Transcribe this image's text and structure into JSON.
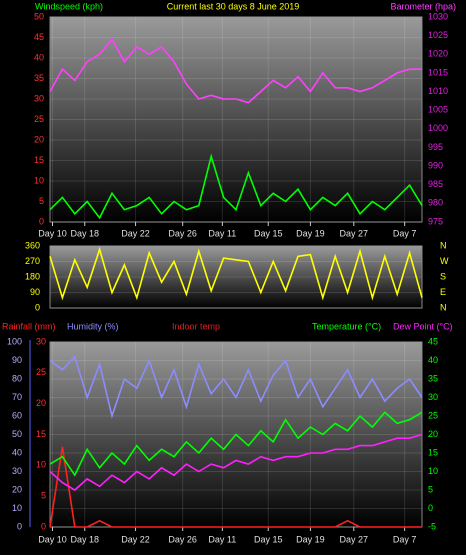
{
  "chart_data": [
    {
      "type": "line",
      "title": "Current last 30 days 8 June 2019",
      "x": [
        0,
        1,
        2,
        3,
        4,
        5,
        6,
        7,
        8,
        9,
        10,
        11,
        12,
        13,
        14,
        15,
        16,
        17,
        18,
        19,
        20,
        21,
        22,
        23,
        24,
        25,
        26,
        27,
        28,
        29,
        30
      ],
      "xlim": [
        0,
        30
      ],
      "xticks": [
        {
          "value": 0.2,
          "label": "Day 10"
        },
        {
          "value": 2.8,
          "label": "Day 18"
        },
        {
          "value": 6.9,
          "label": "Day 22"
        },
        {
          "value": 10.7,
          "label": "Day 26"
        },
        {
          "value": 13.9,
          "label": "Day 11"
        },
        {
          "value": 17.6,
          "label": "Day 15"
        },
        {
          "value": 21,
          "label": "Day 19"
        },
        {
          "value": 24.5,
          "label": "Day 27"
        },
        {
          "value": 28.6,
          "label": "Day 7"
        }
      ],
      "ylim": [
        0,
        50
      ],
      "yticks": [
        0,
        5,
        10,
        15,
        20,
        25,
        30,
        35,
        40,
        45,
        50
      ],
      "ycolor": "#ff3030",
      "y2lim": [
        975,
        1030
      ],
      "y2ticks": [
        975,
        980,
        985,
        990,
        995,
        1000,
        1005,
        1010,
        1015,
        1020,
        1025,
        1030
      ],
      "y2color": "#e020e0",
      "grid": true,
      "series": [
        {
          "name": "Windspeed (kph)",
          "color": "#00ff00",
          "values": [
            3,
            6,
            2,
            5,
            1,
            7,
            3,
            4,
            6,
            2,
            5,
            3,
            4,
            16,
            6,
            3,
            12,
            4,
            7,
            5,
            8,
            3,
            6,
            4,
            7,
            2,
            5,
            3,
            6,
            9,
            4
          ]
        },
        {
          "name": "Barometer (hpa)",
          "color": "#ff40ff",
          "axis": "y2",
          "values": [
            1010,
            1016,
            1013,
            1018,
            1020,
            1024,
            1018,
            1022,
            1020,
            1022,
            1018,
            1012,
            1008,
            1009,
            1008,
            1008,
            1007,
            1010,
            1013,
            1011,
            1014,
            1010,
            1015,
            1011,
            1011,
            1010,
            1011,
            1013,
            1015,
            1016,
            1016
          ]
        }
      ]
    },
    {
      "type": "line",
      "x": [
        0,
        1,
        2,
        3,
        4,
        5,
        6,
        7,
        8,
        9,
        10,
        11,
        12,
        13,
        14,
        15,
        16,
        17,
        18,
        19,
        20,
        21,
        22,
        23,
        24,
        25,
        26,
        27,
        28,
        29,
        30
      ],
      "xlim": [
        0,
        30
      ],
      "ylim": [
        0,
        360
      ],
      "yticks": [
        0,
        90,
        180,
        270,
        360
      ],
      "ycolor": "#ffff00",
      "y2lim": [
        0,
        360
      ],
      "y2ticks": [
        {
          "value": 0,
          "label": "N"
        },
        {
          "value": 90,
          "label": "E"
        },
        {
          "value": 180,
          "label": "S"
        },
        {
          "value": 270,
          "label": "W"
        },
        {
          "value": 360,
          "label": "N"
        }
      ],
      "y2color": "#ffff00",
      "grid": true,
      "series": [
        {
          "color": "#ffff00",
          "values": [
            300,
            60,
            280,
            120,
            340,
            90,
            250,
            60,
            320,
            150,
            270,
            80,
            330,
            100,
            290,
            280,
            270,
            90,
            270,
            100,
            300,
            310,
            60,
            300,
            90,
            330,
            60,
            300,
            80,
            320,
            60
          ]
        }
      ]
    },
    {
      "type": "line",
      "x": [
        0,
        1,
        2,
        3,
        4,
        5,
        6,
        7,
        8,
        9,
        10,
        11,
        12,
        13,
        14,
        15,
        16,
        17,
        18,
        19,
        20,
        21,
        22,
        23,
        24,
        25,
        26,
        27,
        28,
        29,
        30
      ],
      "xlim": [
        0,
        30
      ],
      "xticks": [
        {
          "value": 0.2,
          "label": "Day 10"
        },
        {
          "value": 2.8,
          "label": "Day 18"
        },
        {
          "value": 6.9,
          "label": "Day 22"
        },
        {
          "value": 10.7,
          "label": "Day 26"
        },
        {
          "value": 13.9,
          "label": "Day 11"
        },
        {
          "value": 17.6,
          "label": "Day 15"
        },
        {
          "value": 21,
          "label": "Day 19"
        },
        {
          "value": 24.5,
          "label": "Day 27"
        },
        {
          "value": 28.6,
          "label": "Day 7"
        }
      ],
      "ylim": [
        0,
        100
      ],
      "yticks": [
        0,
        10,
        20,
        30,
        40,
        50,
        60,
        70,
        80,
        90,
        100
      ],
      "ycolor": "#b0b0ff",
      "y3lim": [
        0,
        30
      ],
      "y3ticks": [
        0,
        5,
        10,
        15,
        20,
        25,
        30
      ],
      "y3color": "#ff3030",
      "y2lim": [
        -5,
        45
      ],
      "y2ticks": [
        -5,
        0,
        5,
        10,
        15,
        20,
        25,
        30,
        35,
        40,
        45
      ],
      "y2color": "#00ff00",
      "annotation": "Indoor temp",
      "grid": true,
      "series": [
        {
          "name": "Rainfall (mm)",
          "color": "#ff2020",
          "axis": "y3",
          "values": [
            0,
            13,
            0,
            0,
            1,
            0,
            0,
            0,
            0,
            0,
            0,
            0,
            0,
            0,
            0,
            0,
            0,
            0,
            0,
            0,
            0,
            0,
            0,
            0,
            1,
            0,
            0,
            0,
            0,
            0,
            0
          ]
        },
        {
          "name": "Humidity (%)",
          "color": "#8c8cff",
          "values": [
            90,
            85,
            92,
            70,
            88,
            60,
            80,
            75,
            90,
            70,
            85,
            65,
            88,
            72,
            80,
            70,
            85,
            68,
            82,
            90,
            70,
            80,
            65,
            75,
            85,
            70,
            80,
            68,
            75,
            80,
            70
          ]
        },
        {
          "name": "Temperature (°C)",
          "color": "#00ff00",
          "axis": "y2",
          "values": [
            12,
            14,
            9,
            16,
            11,
            15,
            12,
            17,
            13,
            16,
            14,
            18,
            15,
            19,
            16,
            20,
            17,
            21,
            18,
            24,
            19,
            22,
            20,
            23,
            21,
            25,
            22,
            26,
            23,
            24,
            26
          ]
        },
        {
          "name": "Dew Point (°C)",
          "color": "#ff20ff",
          "axis": "y2",
          "values": [
            10,
            7,
            5,
            8,
            6,
            9,
            7,
            10,
            8,
            11,
            9,
            12,
            10,
            12,
            11,
            13,
            12,
            14,
            13,
            14,
            14,
            15,
            15,
            16,
            16,
            17,
            17,
            18,
            19,
            19,
            20
          ]
        }
      ]
    }
  ]
}
